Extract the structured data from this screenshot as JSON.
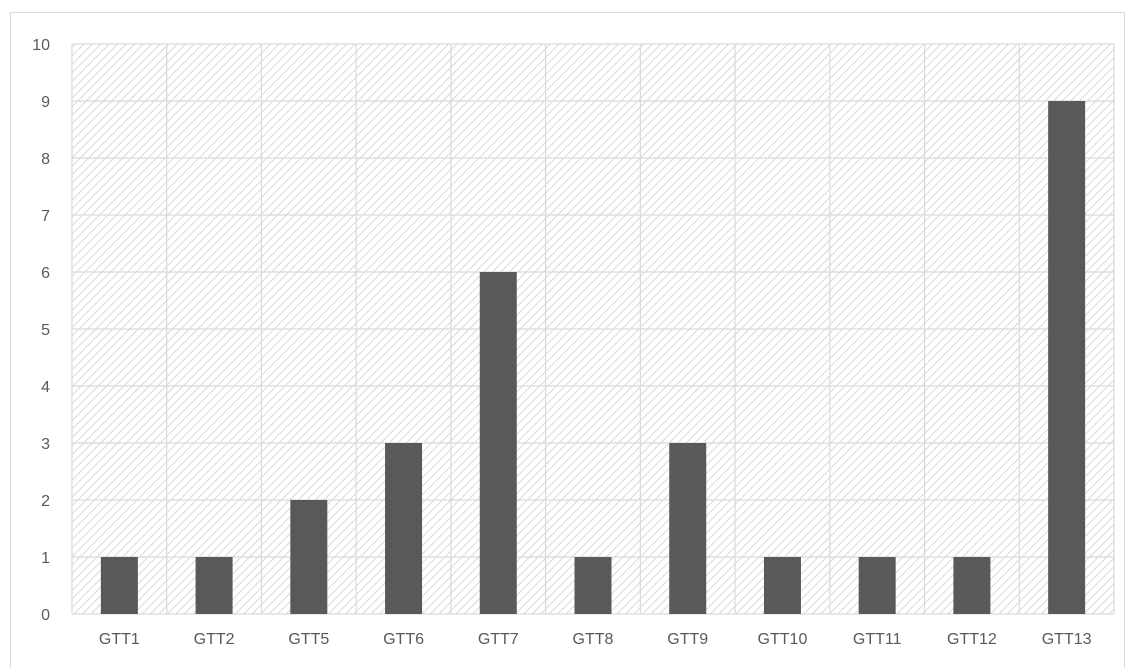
{
  "chart_data": {
    "type": "bar",
    "title": "",
    "xlabel": "",
    "ylabel": "",
    "categories": [
      "GTT1",
      "GTT2",
      "GTT5",
      "GTT6",
      "GTT7",
      "GTT8",
      "GTT9",
      "GTT10",
      "GTT11",
      "GTT12",
      "GTT13"
    ],
    "values": [
      1,
      1,
      2,
      3,
      6,
      1,
      3,
      1,
      1,
      1,
      9
    ],
    "ylim": [
      0,
      10
    ],
    "yticks": [
      "0",
      "1",
      "2",
      "3",
      "4",
      "5",
      "6",
      "7",
      "8",
      "9",
      "10"
    ],
    "grid": true,
    "legend": "none",
    "colors": {
      "bar": "#595959",
      "grid": "#d9d9d9",
      "plot_hatch": "#d0d0d0",
      "axis_text": "#595959"
    }
  }
}
